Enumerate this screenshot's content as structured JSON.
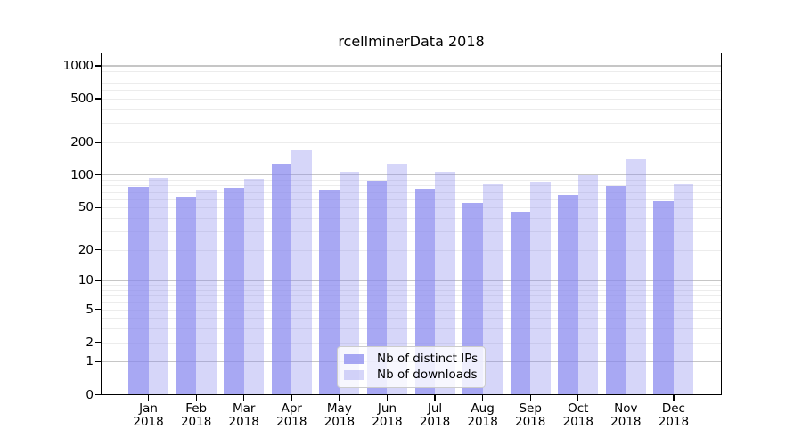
{
  "title": "rcellminerData 2018",
  "chart_data": {
    "type": "bar",
    "title": "rcellminerData 2018",
    "categories": [
      "Jan",
      "Feb",
      "Mar",
      "Apr",
      "May",
      "Jun",
      "Jul",
      "Aug",
      "Sep",
      "Oct",
      "Nov",
      "Dec"
    ],
    "category_year": "2018",
    "series": [
      {
        "name": "Nb of distinct IPs",
        "color": "rgba(134,134,238,0.72)",
        "values": [
          77,
          63,
          76,
          126,
          73,
          88,
          75,
          55,
          46,
          66,
          79,
          57
        ]
      },
      {
        "name": "Nb of downloads",
        "color": "rgba(134,134,238,0.34)",
        "values": [
          94,
          74,
          92,
          172,
          108,
          127,
          107,
          82,
          86,
          100,
          140,
          83
        ]
      }
    ],
    "y_axis": {
      "scale": "log1p",
      "tick_values": [
        0,
        1,
        2,
        5,
        10,
        20,
        50,
        100,
        200,
        500,
        1000
      ],
      "major_gridlines": [
        1,
        10,
        100,
        1000
      ],
      "minor_gridline_steps": [
        2,
        3,
        4,
        5,
        6,
        7,
        8,
        9
      ],
      "minor_gridline_decades": [
        1,
        10,
        100
      ],
      "ylim_top": 1326
    },
    "grid": {
      "major_color": "#c6c6c6",
      "minor_color": "#ececec"
    },
    "legend_position": "lower center",
    "background_color": "#ffffff",
    "spine_color": "#000000"
  }
}
